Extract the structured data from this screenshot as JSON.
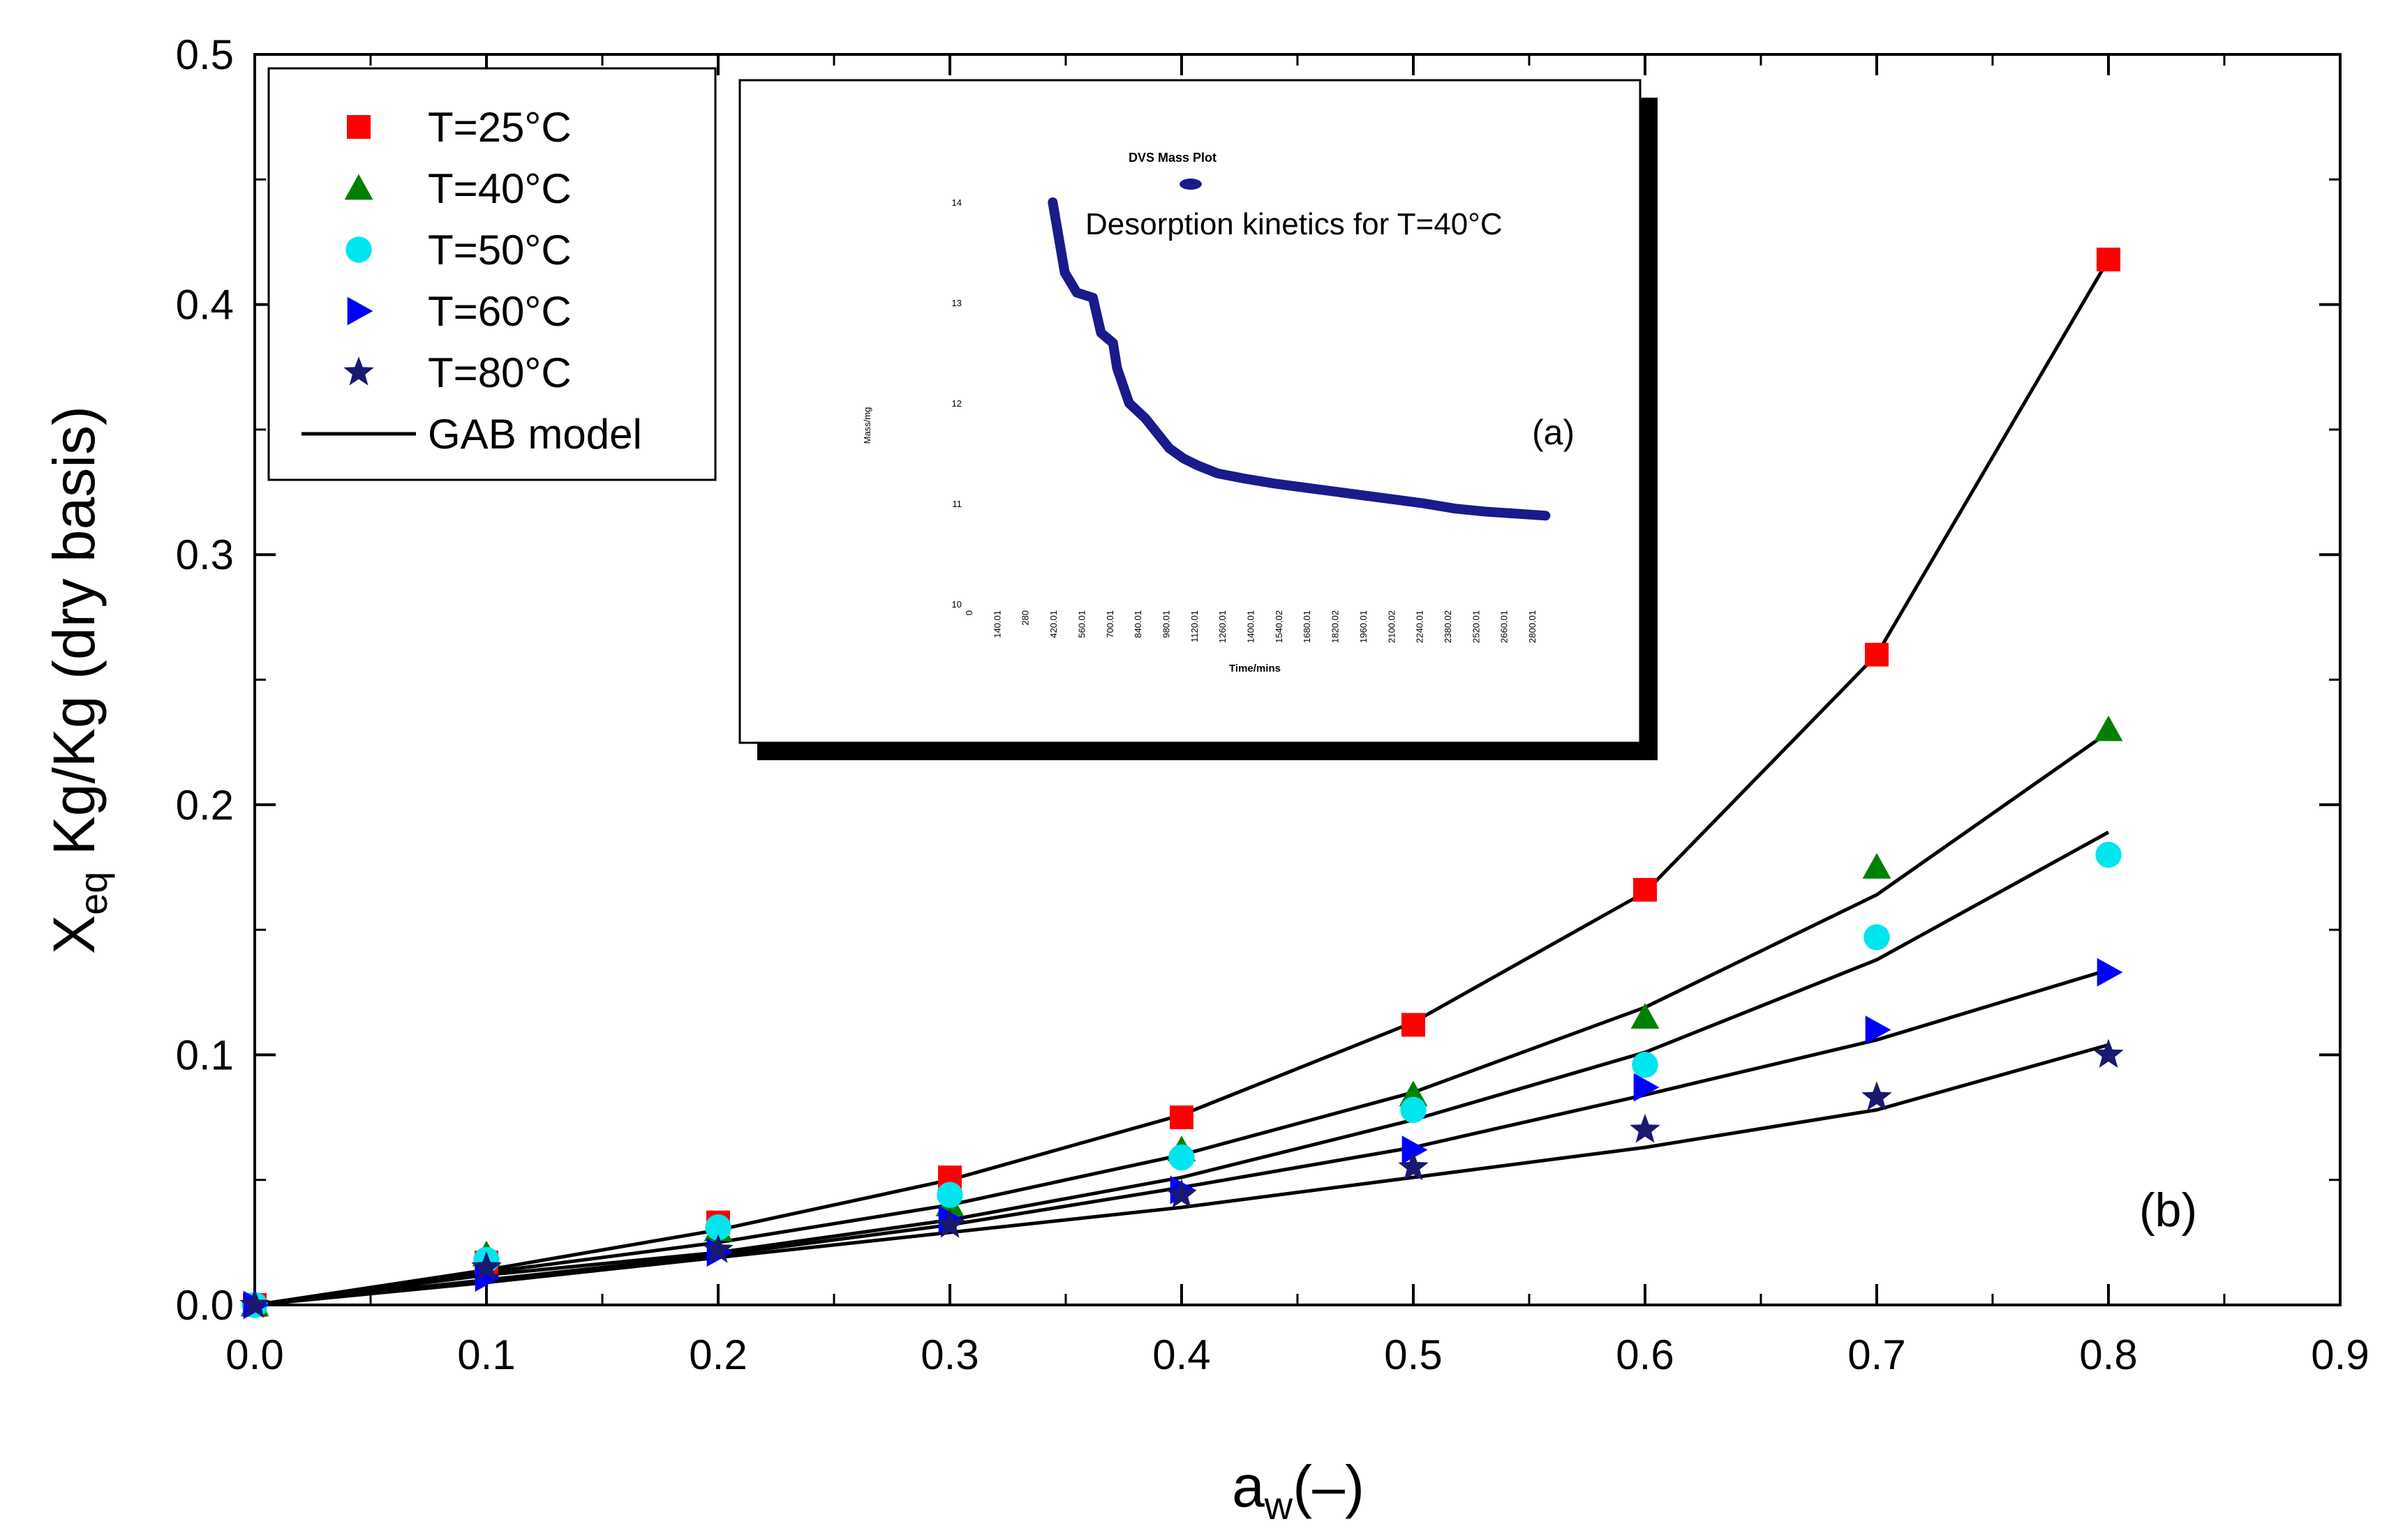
{
  "chart_data": {
    "type": "scatter",
    "xlabel": "a",
    "xlabel_sub": "w",
    "xlabel_suffix": "(–)",
    "ylabel_main": "X",
    "ylabel_sub": "eq",
    "ylabel_suffix": " Kg/Kg (dry basis)",
    "xlim": [
      0,
      0.9
    ],
    "ylim": [
      0,
      0.5
    ],
    "x_ticks": [
      "0.0",
      "0.1",
      "0.2",
      "0.3",
      "0.4",
      "0.5",
      "0.6",
      "0.7",
      "0.8",
      "0.9"
    ],
    "y_ticks": [
      "0.0",
      "0.1",
      "0.2",
      "0.3",
      "0.4",
      "0.5"
    ],
    "panel_label": "(b)",
    "legend_position": "top-left",
    "series": [
      {
        "name": "T=25°C",
        "marker": "square",
        "color": "#ff0000",
        "x": [
          0.0,
          0.1,
          0.2,
          0.3,
          0.4,
          0.5,
          0.6,
          0.7,
          0.8
        ],
        "y": [
          0.0,
          0.017,
          0.033,
          0.051,
          0.075,
          0.112,
          0.166,
          0.26,
          0.418
        ]
      },
      {
        "name": "T=40°C",
        "marker": "triangle-up",
        "color": "#008000",
        "x": [
          0.0,
          0.1,
          0.2,
          0.3,
          0.4,
          0.5,
          0.6,
          0.7,
          0.8
        ],
        "y": [
          0.0,
          0.02,
          0.03,
          0.04,
          0.062,
          0.084,
          0.115,
          0.175,
          0.23
        ]
      },
      {
        "name": "T=50°C",
        "marker": "circle",
        "color": "#00e5ee",
        "x": [
          0.0,
          0.1,
          0.2,
          0.3,
          0.4,
          0.5,
          0.6,
          0.7,
          0.8
        ],
        "y": [
          0.0,
          0.018,
          0.031,
          0.044,
          0.059,
          0.078,
          0.096,
          0.147,
          0.18
        ]
      },
      {
        "name": "T=60°C",
        "marker": "triangle-right",
        "color": "#0000ff",
        "x": [
          0.0,
          0.1,
          0.2,
          0.3,
          0.4,
          0.5,
          0.6,
          0.7,
          0.8
        ],
        "y": [
          0.0,
          0.011,
          0.021,
          0.034,
          0.046,
          0.062,
          0.087,
          0.11,
          0.133
        ]
      },
      {
        "name": "T=80°C",
        "marker": "star",
        "color": "#191970",
        "x": [
          0.0,
          0.1,
          0.2,
          0.3,
          0.4,
          0.5,
          0.6,
          0.7,
          0.8
        ],
        "y": [
          0.0,
          0.015,
          0.022,
          0.032,
          0.044,
          0.055,
          0.07,
          0.083,
          0.1
        ]
      }
    ],
    "model": {
      "name": "GAB model",
      "color": "#000000",
      "curves": [
        {
          "x": [
            0.0,
            0.1,
            0.2,
            0.3,
            0.4,
            0.5,
            0.6,
            0.7,
            0.8
          ],
          "y": [
            0.0,
            0.014,
            0.03,
            0.05,
            0.076,
            0.113,
            0.165,
            0.26,
            0.418
          ]
        },
        {
          "x": [
            0.0,
            0.1,
            0.2,
            0.3,
            0.4,
            0.5,
            0.6,
            0.7,
            0.8
          ],
          "y": [
            0.0,
            0.013,
            0.025,
            0.04,
            0.06,
            0.085,
            0.119,
            0.164,
            0.229
          ]
        },
        {
          "x": [
            0.0,
            0.1,
            0.2,
            0.3,
            0.4,
            0.5,
            0.6,
            0.7,
            0.8
          ],
          "y": [
            0.0,
            0.012,
            0.021,
            0.034,
            0.051,
            0.074,
            0.101,
            0.138,
            0.189
          ]
        },
        {
          "x": [
            0.0,
            0.1,
            0.2,
            0.3,
            0.4,
            0.5,
            0.6,
            0.7,
            0.8
          ],
          "y": [
            0.0,
            0.01,
            0.02,
            0.032,
            0.047,
            0.063,
            0.084,
            0.106,
            0.134
          ]
        },
        {
          "x": [
            0.0,
            0.1,
            0.2,
            0.3,
            0.4,
            0.5,
            0.6,
            0.7,
            0.8
          ],
          "y": [
            0.0,
            0.009,
            0.019,
            0.029,
            0.039,
            0.051,
            0.063,
            0.078,
            0.104
          ]
        }
      ]
    },
    "inset": {
      "title": "DVS Mass Plot",
      "annotation": "Desorption kinetics for T=40°C",
      "panel_label": "(a)",
      "ylabel": "Mass/mg",
      "xlabel": "Time/mins",
      "ylim": [
        10,
        14
      ],
      "y_ticks": [
        "14",
        "13",
        "12",
        "11",
        "10"
      ],
      "x_ticks": [
        "0",
        "140.01",
        "280",
        "420.01",
        "560.01",
        "700.01",
        "840.01",
        "980.01",
        "1120.01",
        "1260.01",
        "1400.01",
        "1540.02",
        "1680.01",
        "1820.02",
        "1960.01",
        "2100.02",
        "2240.01",
        "2380.02",
        "2520.01",
        "2660.01",
        "2800.01"
      ],
      "line_color": "#1a1a8c",
      "curve": {
        "t": [
          400,
          460,
          520,
          600,
          640,
          700,
          720,
          780,
          860,
          900,
          980,
          1050,
          1120,
          1220,
          1350,
          1500,
          1650,
          1800,
          1950,
          2100,
          2250,
          2400,
          2550,
          2700,
          2850
        ],
        "mass": [
          14.0,
          13.3,
          13.1,
          13.05,
          12.7,
          12.6,
          12.35,
          12.0,
          11.85,
          11.75,
          11.55,
          11.45,
          11.38,
          11.3,
          11.25,
          11.2,
          11.16,
          11.12,
          11.08,
          11.04,
          11.0,
          10.95,
          10.92,
          10.9,
          10.88
        ]
      }
    }
  }
}
